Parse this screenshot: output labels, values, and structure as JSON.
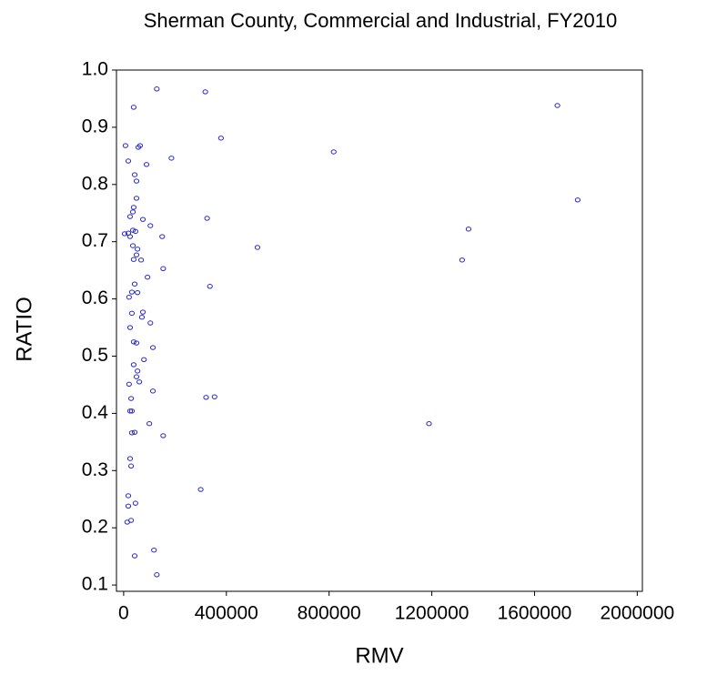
{
  "chart_data": {
    "type": "scatter",
    "title": "Sherman County, Commercial and Industrial, FY2010",
    "x_label": "RMV",
    "y_label": "RATIO",
    "color": "#2424c8",
    "xlim": [
      -28000,
      2020000
    ],
    "ylim": [
      0.089,
      1.0
    ],
    "xticks": [
      0,
      400000,
      800000,
      1200000,
      1600000,
      2000000
    ],
    "yticks": [
      {
        "value": 1,
        "label": "1.0"
      },
      0.9,
      0.8,
      0.7,
      0.6,
      0.5,
      0.4,
      0.3,
      0.2,
      0.1
    ],
    "x": [
      129000,
      318000,
      39000,
      1689000,
      379000,
      7000,
      57000,
      64000,
      818000,
      186000,
      18000,
      89000,
      43000,
      50000,
      50000,
      1768000,
      39000,
      36000,
      25000,
      325000,
      75000,
      104000,
      1343000,
      36000,
      18000,
      46000,
      4000,
      150000,
      25000,
      36000,
      521000,
      54000,
      50000,
      39000,
      1318000,
      68000,
      154000,
      93000,
      43000,
      336000,
      32000,
      54000,
      21000,
      75000,
      32000,
      71000,
      104000,
      25000,
      39000,
      50000,
      114000,
      79000,
      39000,
      54000,
      50000,
      61000,
      21000,
      114000,
      354000,
      321000,
      29000,
      25000,
      32000,
      1189000,
      100000,
      43000,
      32000,
      154000,
      25000,
      29000,
      300000,
      18000,
      46000,
      18000,
      29000,
      14000,
      43000,
      118000,
      129000
    ],
    "values": [
      0.967,
      0.962,
      0.935,
      0.938,
      0.881,
      0.868,
      0.865,
      0.868,
      0.857,
      0.846,
      0.841,
      0.835,
      0.817,
      0.806,
      0.776,
      0.773,
      0.76,
      0.752,
      0.744,
      0.741,
      0.739,
      0.728,
      0.722,
      0.72,
      0.715,
      0.718,
      0.714,
      0.709,
      0.709,
      0.693,
      0.69,
      0.687,
      0.677,
      0.669,
      0.668,
      0.668,
      0.653,
      0.638,
      0.626,
      0.622,
      0.612,
      0.611,
      0.603,
      0.577,
      0.575,
      0.568,
      0.558,
      0.55,
      0.525,
      0.523,
      0.515,
      0.494,
      0.485,
      0.474,
      0.464,
      0.455,
      0.451,
      0.439,
      0.429,
      0.428,
      0.426,
      0.404,
      0.404,
      0.382,
      0.382,
      0.367,
      0.366,
      0.361,
      0.321,
      0.308,
      0.267,
      0.256,
      0.243,
      0.238,
      0.213,
      0.21,
      0.151,
      0.161,
      0.118
    ]
  }
}
